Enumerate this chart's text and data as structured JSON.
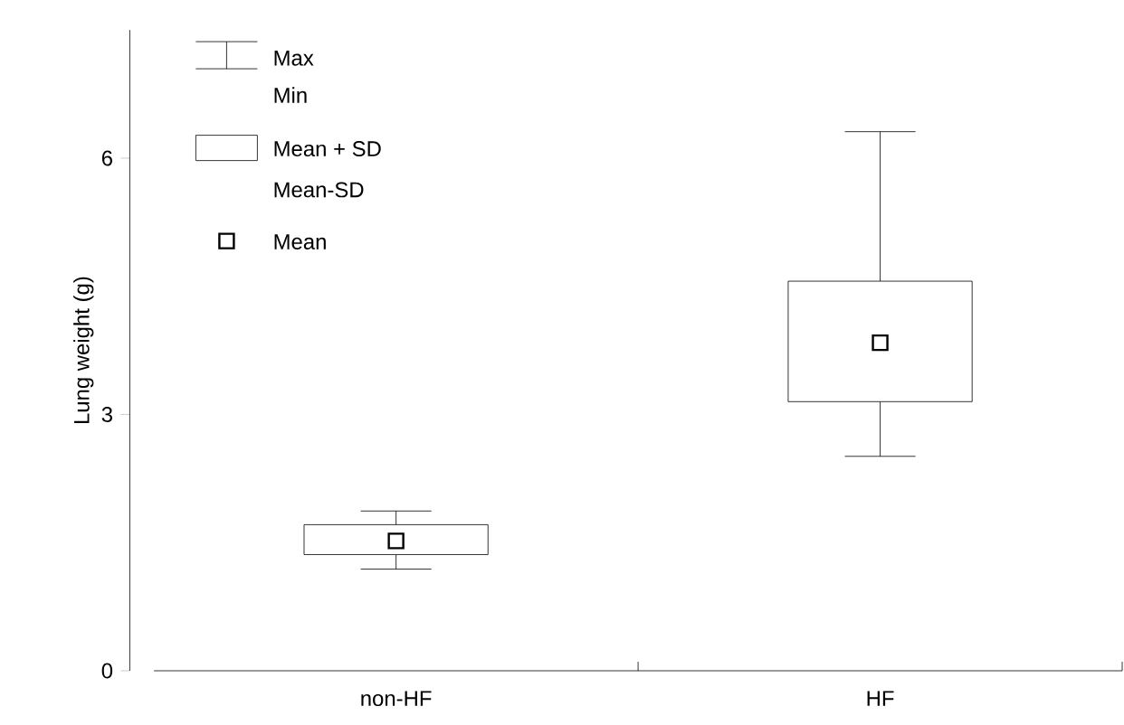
{
  "chart_data": {
    "type": "box",
    "ylabel": "Lung weight (g)",
    "categories": [
      "non-HF",
      "HF"
    ],
    "boxes": [
      {
        "low": 1.19,
        "q1": 1.36,
        "q3": 1.71,
        "high": 1.87,
        "mean": 1.52
      },
      {
        "low": 2.51,
        "q1": 3.15,
        "q3": 4.56,
        "high": 6.31,
        "mean": 3.84
      }
    ],
    "ylim": [
      0,
      7.5
    ],
    "yticks": [
      0,
      3,
      6
    ],
    "marker": "square",
    "annotations": [
      "Max",
      "Min",
      "Mean + SD",
      "Mean-SD",
      "Mean"
    ]
  }
}
